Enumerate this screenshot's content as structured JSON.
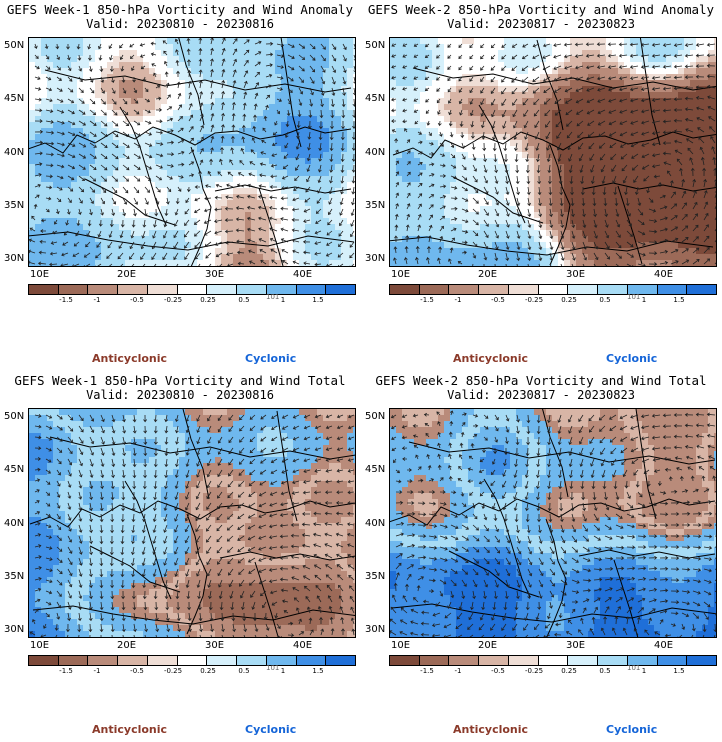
{
  "panels": [
    {
      "title": "GEFS Week-1 850-hPa Vorticity and Wind Anomaly",
      "valid": "Valid: 20230810 - 20230816",
      "mode": "anomaly",
      "seed": 11
    },
    {
      "title": "GEFS Week-2 850-hPa Vorticity and Wind Anomaly",
      "valid": "Valid: 20230817 - 20230823",
      "mode": "anomaly",
      "seed": 29
    },
    {
      "title": "GEFS Week-1 850-hPa Vorticity and Wind Total",
      "valid": "Valid: 20230810 - 20230816",
      "mode": "total",
      "seed": 47
    },
    {
      "title": "GEFS Week-2 850-hPa Vorticity and Wind Total",
      "valid": "Valid: 20230817 - 20230823",
      "mode": "total",
      "seed": 63
    }
  ],
  "lat_labels": [
    "50N",
    "45N",
    "40N",
    "35N",
    "30N"
  ],
  "lon_labels": [
    "10E",
    "20E",
    "30E",
    "40E"
  ],
  "colorbar": {
    "colors": [
      "#7d4a3a",
      "#9c6a58",
      "#b98b7a",
      "#d8b5a6",
      "#efded6",
      "#ffffff",
      "#d6f0fb",
      "#a8dcf5",
      "#6fb8ee",
      "#3f8fe6",
      "#1f6fd8"
    ],
    "ticks": [
      "-1.5",
      "-1",
      "-0.5",
      "-0.25",
      "0.25",
      "0.5",
      "1",
      "1.5"
    ],
    "logo": "101"
  },
  "legend": {
    "anticyclonic": "Anticyclonic",
    "cyclonic": "Cyclonic"
  }
}
